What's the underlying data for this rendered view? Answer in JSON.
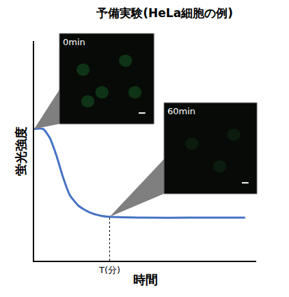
{
  "chart_data": {
    "type": "line",
    "title": "予備実験(HeLa細胞の例)",
    "x_label": "時間",
    "y_label": "蛍光強度",
    "x": [
      0,
      4,
      7,
      10,
      13,
      16,
      20,
      25,
      30,
      34,
      50,
      70,
      95
    ],
    "values": [
      60,
      60,
      56,
      48,
      38,
      30,
      25,
      22,
      20.5,
      20,
      19.6,
      19.6,
      19.6
    ],
    "color": "#4472c4",
    "xlim": [
      0,
      100
    ],
    "ylim": [
      0,
      100
    ],
    "xticks": [
      {
        "value": 34,
        "label": "T(分)"
      }
    ],
    "yticks": [],
    "tick_labels": "x",
    "grid": false,
    "annotations": [
      "0min",
      "60min"
    ]
  }
}
